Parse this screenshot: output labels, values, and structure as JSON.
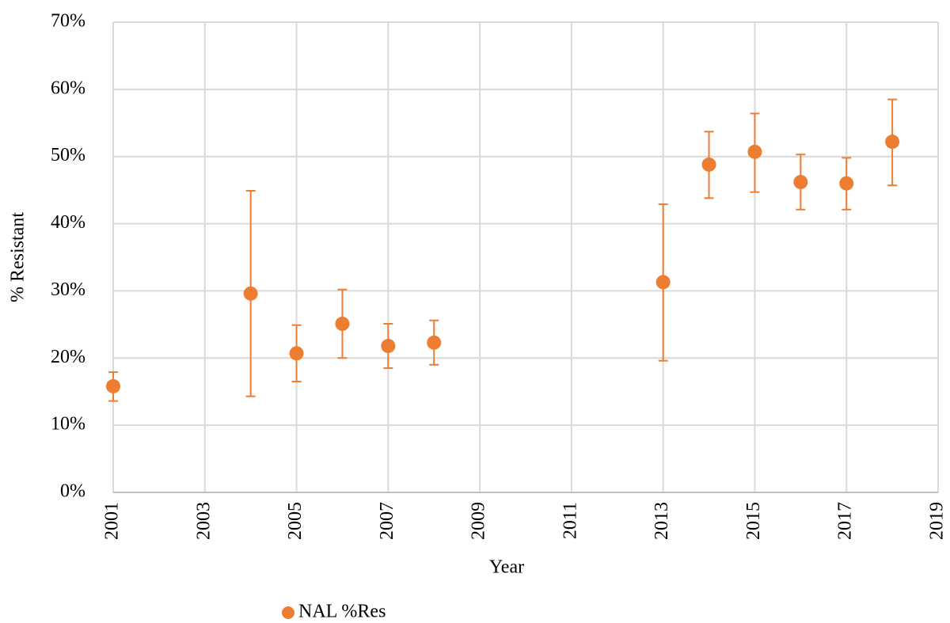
{
  "chart_data": {
    "type": "scatter",
    "x_label": "Year",
    "y_label": "% Resistant",
    "xlim": [
      2001,
      2019
    ],
    "xticks": [
      2001,
      2003,
      2005,
      2007,
      2009,
      2011,
      2013,
      2015,
      2017,
      2019
    ],
    "ylim": [
      0,
      70
    ],
    "yticks": [
      {
        "value": 0,
        "label": "0%"
      },
      {
        "value": 10,
        "label": "10%"
      },
      {
        "value": 20,
        "label": "20%"
      },
      {
        "value": 30,
        "label": "30%"
      },
      {
        "value": 40,
        "label": "40%"
      },
      {
        "value": 50,
        "label": "50%"
      },
      {
        "value": 60,
        "label": "60%"
      },
      {
        "value": 70,
        "label": "70%"
      }
    ],
    "grid": true,
    "legend": "bottom",
    "series": [
      {
        "name": "NAL %Res",
        "color": "#ed7d31",
        "x": [
          2001,
          2004,
          2005,
          2006,
          2007,
          2008,
          2013,
          2014,
          2015,
          2016,
          2017,
          2018
        ],
        "values": [
          15.8,
          29.6,
          20.7,
          25.1,
          21.8,
          22.3,
          31.3,
          48.8,
          50.7,
          46.2,
          46.0,
          52.2
        ],
        "err_minus": [
          2.2,
          15.3,
          4.2,
          5.1,
          3.3,
          3.3,
          11.7,
          5.0,
          6.0,
          4.1,
          3.9,
          6.5
        ],
        "err_plus": [
          2.1,
          15.3,
          4.2,
          5.1,
          3.3,
          3.3,
          11.6,
          4.9,
          5.7,
          4.1,
          3.8,
          6.3
        ]
      }
    ]
  }
}
